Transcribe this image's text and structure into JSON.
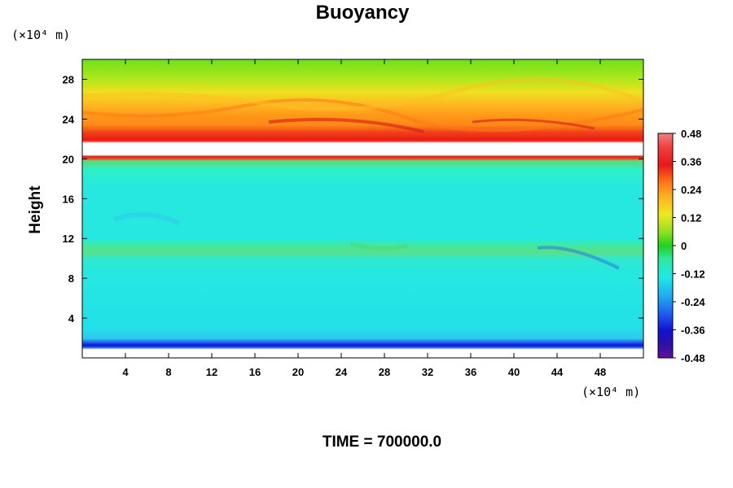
{
  "chart_data": {
    "type": "heatmap",
    "title": "Buoyancy",
    "ylabel": "Height",
    "x_unit": "(×10⁴ m)",
    "y_unit": "(×10⁴ m)",
    "xlim": [
      0,
      52
    ],
    "ylim": [
      0,
      30
    ],
    "x_ticks": [
      4,
      8,
      12,
      16,
      20,
      24,
      28,
      32,
      36,
      40,
      44,
      48
    ],
    "y_ticks": [
      4,
      8,
      12,
      16,
      20,
      24,
      28
    ],
    "colorbar": {
      "range": [
        -0.48,
        0.48
      ],
      "tick_values": [
        0.48,
        0.36,
        0.24,
        0.12,
        0,
        -0.12,
        -0.24,
        -0.36,
        -0.48
      ],
      "tick_labels": [
        "0.48",
        "0.36",
        "0.24",
        "0.12",
        "0",
        "-0.12",
        "-0.24",
        "-0.36",
        "-0.48"
      ]
    },
    "layers": [
      {
        "y_range": [
          1.6,
          2.1
        ],
        "value": -0.38,
        "description": "dark blue band"
      },
      {
        "y_range": [
          2.1,
          10.5
        ],
        "value": -0.15,
        "description": "cyan"
      },
      {
        "y_range": [
          10.5,
          11.8
        ],
        "value": -0.1,
        "description": "light green band"
      },
      {
        "y_range": [
          11.8,
          20.0
        ],
        "value": -0.14,
        "description": "cyan"
      },
      {
        "y_range": [
          20.0,
          20.4
        ],
        "value": 0.38,
        "description": "thin red line"
      },
      {
        "y_range": [
          20.4,
          22.6
        ],
        "value": null,
        "description": "undefined (white)"
      },
      {
        "y_range": [
          22.6,
          24.5
        ],
        "value": 0.38,
        "description": "red"
      },
      {
        "y_range": [
          24.5,
          27.0
        ],
        "value": 0.26,
        "description": "orange"
      },
      {
        "y_range": [
          27.0,
          28.5
        ],
        "value": 0.15,
        "description": "yellow"
      },
      {
        "y_range": [
          28.5,
          30.0
        ],
        "value": 0.03,
        "description": "green"
      }
    ],
    "grid": false,
    "legend": "colorbar-right"
  },
  "footer": {
    "time_text": "TIME = 700000.0"
  }
}
